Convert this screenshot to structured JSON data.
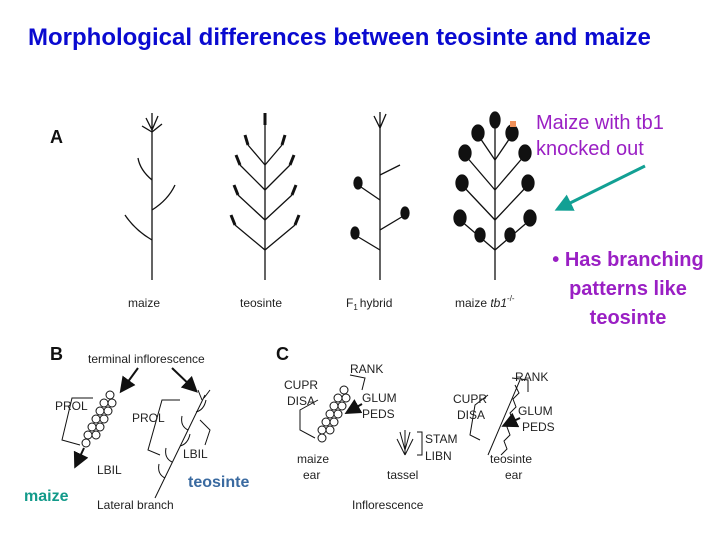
{
  "title": "Morphological differences between teosinte and maize",
  "bullets": {
    "first": "Maize with tb1 knocked out",
    "second_marker": "•",
    "second": "Has branching patterns like teosinte"
  },
  "colors": {
    "title": "#0a0ad0",
    "bullet_text": "#9a1fc4",
    "bullet_marker": "#f0915a",
    "arrow": "#12a094",
    "maize_label": "#129a8a",
    "teosinte_label": "#3a6aa0"
  },
  "figure": {
    "panel_a": {
      "letter": "A",
      "labels": [
        "maize",
        "teosinte",
        "F1 hybrid",
        "maize tb1"
      ],
      "f1_sub": "1",
      "tb1_sup": "-/-"
    },
    "panel_b": {
      "letter": "B",
      "terminal": "terminal inflorescence",
      "prol1": "PROL",
      "prol2": "PROL",
      "lbil1": "LBIL",
      "lbil2": "LBIL",
      "caption": "Lateral branch"
    },
    "panel_c": {
      "letter": "C",
      "rank1": "RANK",
      "cupr1": "CUPR",
      "disa1": "DISA",
      "glum1": "GLUM",
      "peds1": "PEDS",
      "maize_ear": [
        "maize",
        "ear"
      ],
      "stam": "STAM",
      "libn": "LIBN",
      "tassel": "tassel",
      "rank2": "RANK",
      "cupr2": "CUPR",
      "disa2": "DISA",
      "glum2": "GLUM",
      "peds2": "PEDS",
      "teosinte_ear": [
        "teosinte",
        "ear"
      ],
      "caption": "Inflorescence"
    },
    "overlay": {
      "maize": "maize",
      "teosinte": "teosinte"
    }
  }
}
